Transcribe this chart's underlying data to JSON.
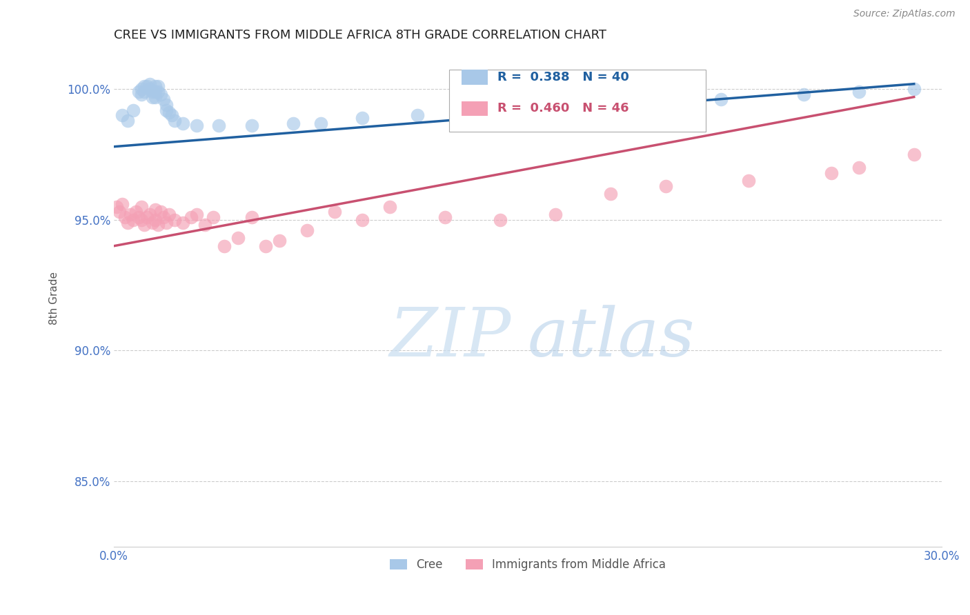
{
  "title": "CREE VS IMMIGRANTS FROM MIDDLE AFRICA 8TH GRADE CORRELATION CHART",
  "source": "Source: ZipAtlas.com",
  "ylabel": "8th Grade",
  "xlim": [
    0.0,
    0.3
  ],
  "ylim": [
    0.825,
    1.015
  ],
  "yticks": [
    0.85,
    0.9,
    0.95,
    1.0
  ],
  "ytick_labels": [
    "85.0%",
    "90.0%",
    "95.0%",
    "100.0%"
  ],
  "xticks": [
    0.0,
    0.05,
    0.1,
    0.15,
    0.2,
    0.25,
    0.3
  ],
  "blue_label": "Cree",
  "pink_label": "Immigrants from Middle Africa",
  "blue_R": 0.388,
  "blue_N": 40,
  "pink_R": 0.46,
  "pink_N": 46,
  "blue_color": "#a8c8e8",
  "pink_color": "#f4a0b5",
  "blue_line_color": "#2060a0",
  "pink_line_color": "#c85070",
  "blue_scatter_x": [
    0.003,
    0.006,
    0.008,
    0.01,
    0.01,
    0.011,
    0.012,
    0.013,
    0.014,
    0.015,
    0.015,
    0.015,
    0.016,
    0.016,
    0.017,
    0.018,
    0.019,
    0.02,
    0.021,
    0.022,
    0.023,
    0.024,
    0.025,
    0.03,
    0.035,
    0.04,
    0.05,
    0.06,
    0.07,
    0.08,
    0.09,
    0.1,
    0.11,
    0.13,
    0.15,
    0.18,
    0.22,
    0.25,
    0.27,
    0.29
  ],
  "blue_scatter_y": [
    0.99,
    0.985,
    0.983,
    1.0,
    0.998,
    0.999,
    1.001,
    1.0,
    0.998,
    0.997,
    0.999,
    1.001,
    0.999,
    1.0,
    0.998,
    0.996,
    0.995,
    0.993,
    0.991,
    0.989,
    0.988,
    0.987,
    0.985,
    0.985,
    0.983,
    0.982,
    0.983,
    0.982,
    0.985,
    0.984,
    0.985,
    0.987,
    0.988,
    0.99,
    0.992,
    0.994,
    0.997,
    0.998,
    0.999,
    1.0
  ],
  "pink_scatter_x": [
    0.001,
    0.002,
    0.003,
    0.004,
    0.005,
    0.006,
    0.007,
    0.008,
    0.009,
    0.01,
    0.01,
    0.011,
    0.012,
    0.013,
    0.014,
    0.015,
    0.016,
    0.017,
    0.018,
    0.019,
    0.02,
    0.022,
    0.025,
    0.028,
    0.03,
    0.032,
    0.035,
    0.04,
    0.045,
    0.05,
    0.055,
    0.06,
    0.065,
    0.07,
    0.075,
    0.08,
    0.09,
    0.1,
    0.11,
    0.13,
    0.15,
    0.17,
    0.2,
    0.23,
    0.26,
    0.28
  ],
  "pink_scatter_y": [
    0.953,
    0.95,
    0.948,
    0.952,
    0.95,
    0.947,
    0.949,
    0.951,
    0.952,
    0.948,
    0.953,
    0.95,
    0.949,
    0.952,
    0.948,
    0.951,
    0.949,
    0.952,
    0.948,
    0.95,
    0.949,
    0.951,
    0.95,
    0.948,
    0.953,
    0.952,
    0.95,
    0.949,
    0.952,
    0.96,
    0.958,
    0.962,
    0.96,
    0.963,
    0.961,
    0.963,
    0.965,
    0.968,
    0.96,
    0.965,
    0.968,
    0.97,
    0.972,
    0.975,
    0.978,
    0.97
  ],
  "background_color": "#ffffff",
  "grid_color": "#cccccc",
  "title_color": "#222222",
  "axis_label_color": "#555555",
  "tick_color": "#4472c4"
}
